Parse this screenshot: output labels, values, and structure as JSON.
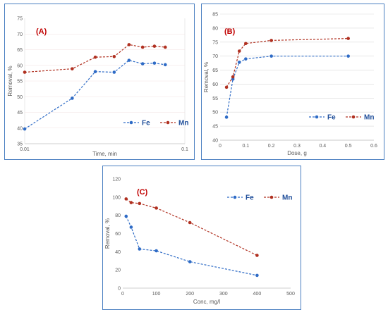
{
  "colors": {
    "fe": "#2e6bc6",
    "mn": "#b03020",
    "frame": "#4a7fc1",
    "grid": "#d9d9d9"
  },
  "chart_data": [
    {
      "id": "A",
      "panel_label": "(A)",
      "type": "line",
      "xscale": "log",
      "xlabel": "Time, min",
      "ylabel": "Removal, %",
      "xlim": [
        0.01,
        0.1
      ],
      "ylim": [
        35,
        75
      ],
      "xticks": [
        0.01,
        0.1
      ],
      "yticks": [
        35,
        40,
        45,
        50,
        55,
        60,
        65,
        70,
        75
      ],
      "ytick_labels": [
        "35",
        "40",
        "45",
        "50",
        "55",
        "60",
        "65",
        "70",
        "75"
      ],
      "xtick_labels": [
        "0.01",
        "0.1"
      ],
      "legend": "inside-bottom-right",
      "series": [
        {
          "name": "Fe",
          "color": "#2e6bc6",
          "x": [
            0.01,
            0.0198,
            0.0276,
            0.0362,
            0.0448,
            0.0545,
            0.0646,
            0.0755
          ],
          "y": [
            39.7,
            49.5,
            58.0,
            57.8,
            61.6,
            60.5,
            60.7,
            60.2
          ]
        },
        {
          "name": "Mn",
          "color": "#b03020",
          "x": [
            0.01,
            0.0198,
            0.0276,
            0.0362,
            0.0448,
            0.0545,
            0.0646,
            0.0755
          ],
          "y": [
            57.8,
            58.9,
            62.6,
            62.8,
            66.6,
            65.8,
            66.1,
            65.8
          ]
        }
      ]
    },
    {
      "id": "B",
      "panel_label": "(B)",
      "type": "line",
      "xlabel": "Dose, g",
      "ylabel": "Removal, %",
      "xlim": [
        0,
        0.6
      ],
      "ylim": [
        40,
        85
      ],
      "xticks": [
        0,
        0.1,
        0.2,
        0.3,
        0.4,
        0.5,
        0.6
      ],
      "xtick_labels": [
        "0",
        "0.1",
        "0.2",
        "0.3",
        "0.4",
        "0.5",
        "0.6"
      ],
      "yticks": [
        40,
        45,
        50,
        55,
        60,
        65,
        70,
        75,
        80,
        85
      ],
      "ytick_labels": [
        "40",
        "45",
        "50",
        "55",
        "60",
        "65",
        "70",
        "75",
        "80",
        "85"
      ],
      "legend": "inside-bottom-right",
      "series": [
        {
          "name": "Fe",
          "color": "#2e6bc6",
          "x": [
            0.025,
            0.05,
            0.075,
            0.1,
            0.2,
            0.5
          ],
          "y": [
            48.2,
            61.8,
            67.8,
            69.0,
            70.0,
            70.0
          ]
        },
        {
          "name": "Mn",
          "color": "#b03020",
          "x": [
            0.025,
            0.05,
            0.075,
            0.1,
            0.2,
            0.5
          ],
          "y": [
            58.9,
            62.6,
            71.8,
            74.5,
            75.6,
            76.3
          ]
        }
      ]
    },
    {
      "id": "C",
      "panel_label": "(C)",
      "type": "line",
      "xlabel": "Conc, mg/l",
      "ylabel": "Removal, %",
      "xlim": [
        0,
        500
      ],
      "ylim": [
        0,
        120
      ],
      "xticks": [
        0,
        100,
        200,
        300,
        400,
        500
      ],
      "xtick_labels": [
        "0",
        "100",
        "200",
        "300",
        "400",
        "500"
      ],
      "yticks": [
        0,
        20,
        40,
        60,
        80,
        100,
        120
      ],
      "ytick_labels": [
        "0",
        "20",
        "40",
        "60",
        "80",
        "100",
        "120"
      ],
      "legend": "top-right",
      "series": [
        {
          "name": "Fe",
          "color": "#2e6bc6",
          "x": [
            10,
            25,
            50,
            100,
            200,
            400
          ],
          "y": [
            79,
            67,
            43,
            41,
            29,
            14
          ]
        },
        {
          "name": "Mn",
          "color": "#b03020",
          "x": [
            10,
            25,
            50,
            100,
            200,
            400
          ],
          "y": [
            98,
            94,
            93,
            88,
            72,
            36
          ]
        }
      ]
    }
  ]
}
